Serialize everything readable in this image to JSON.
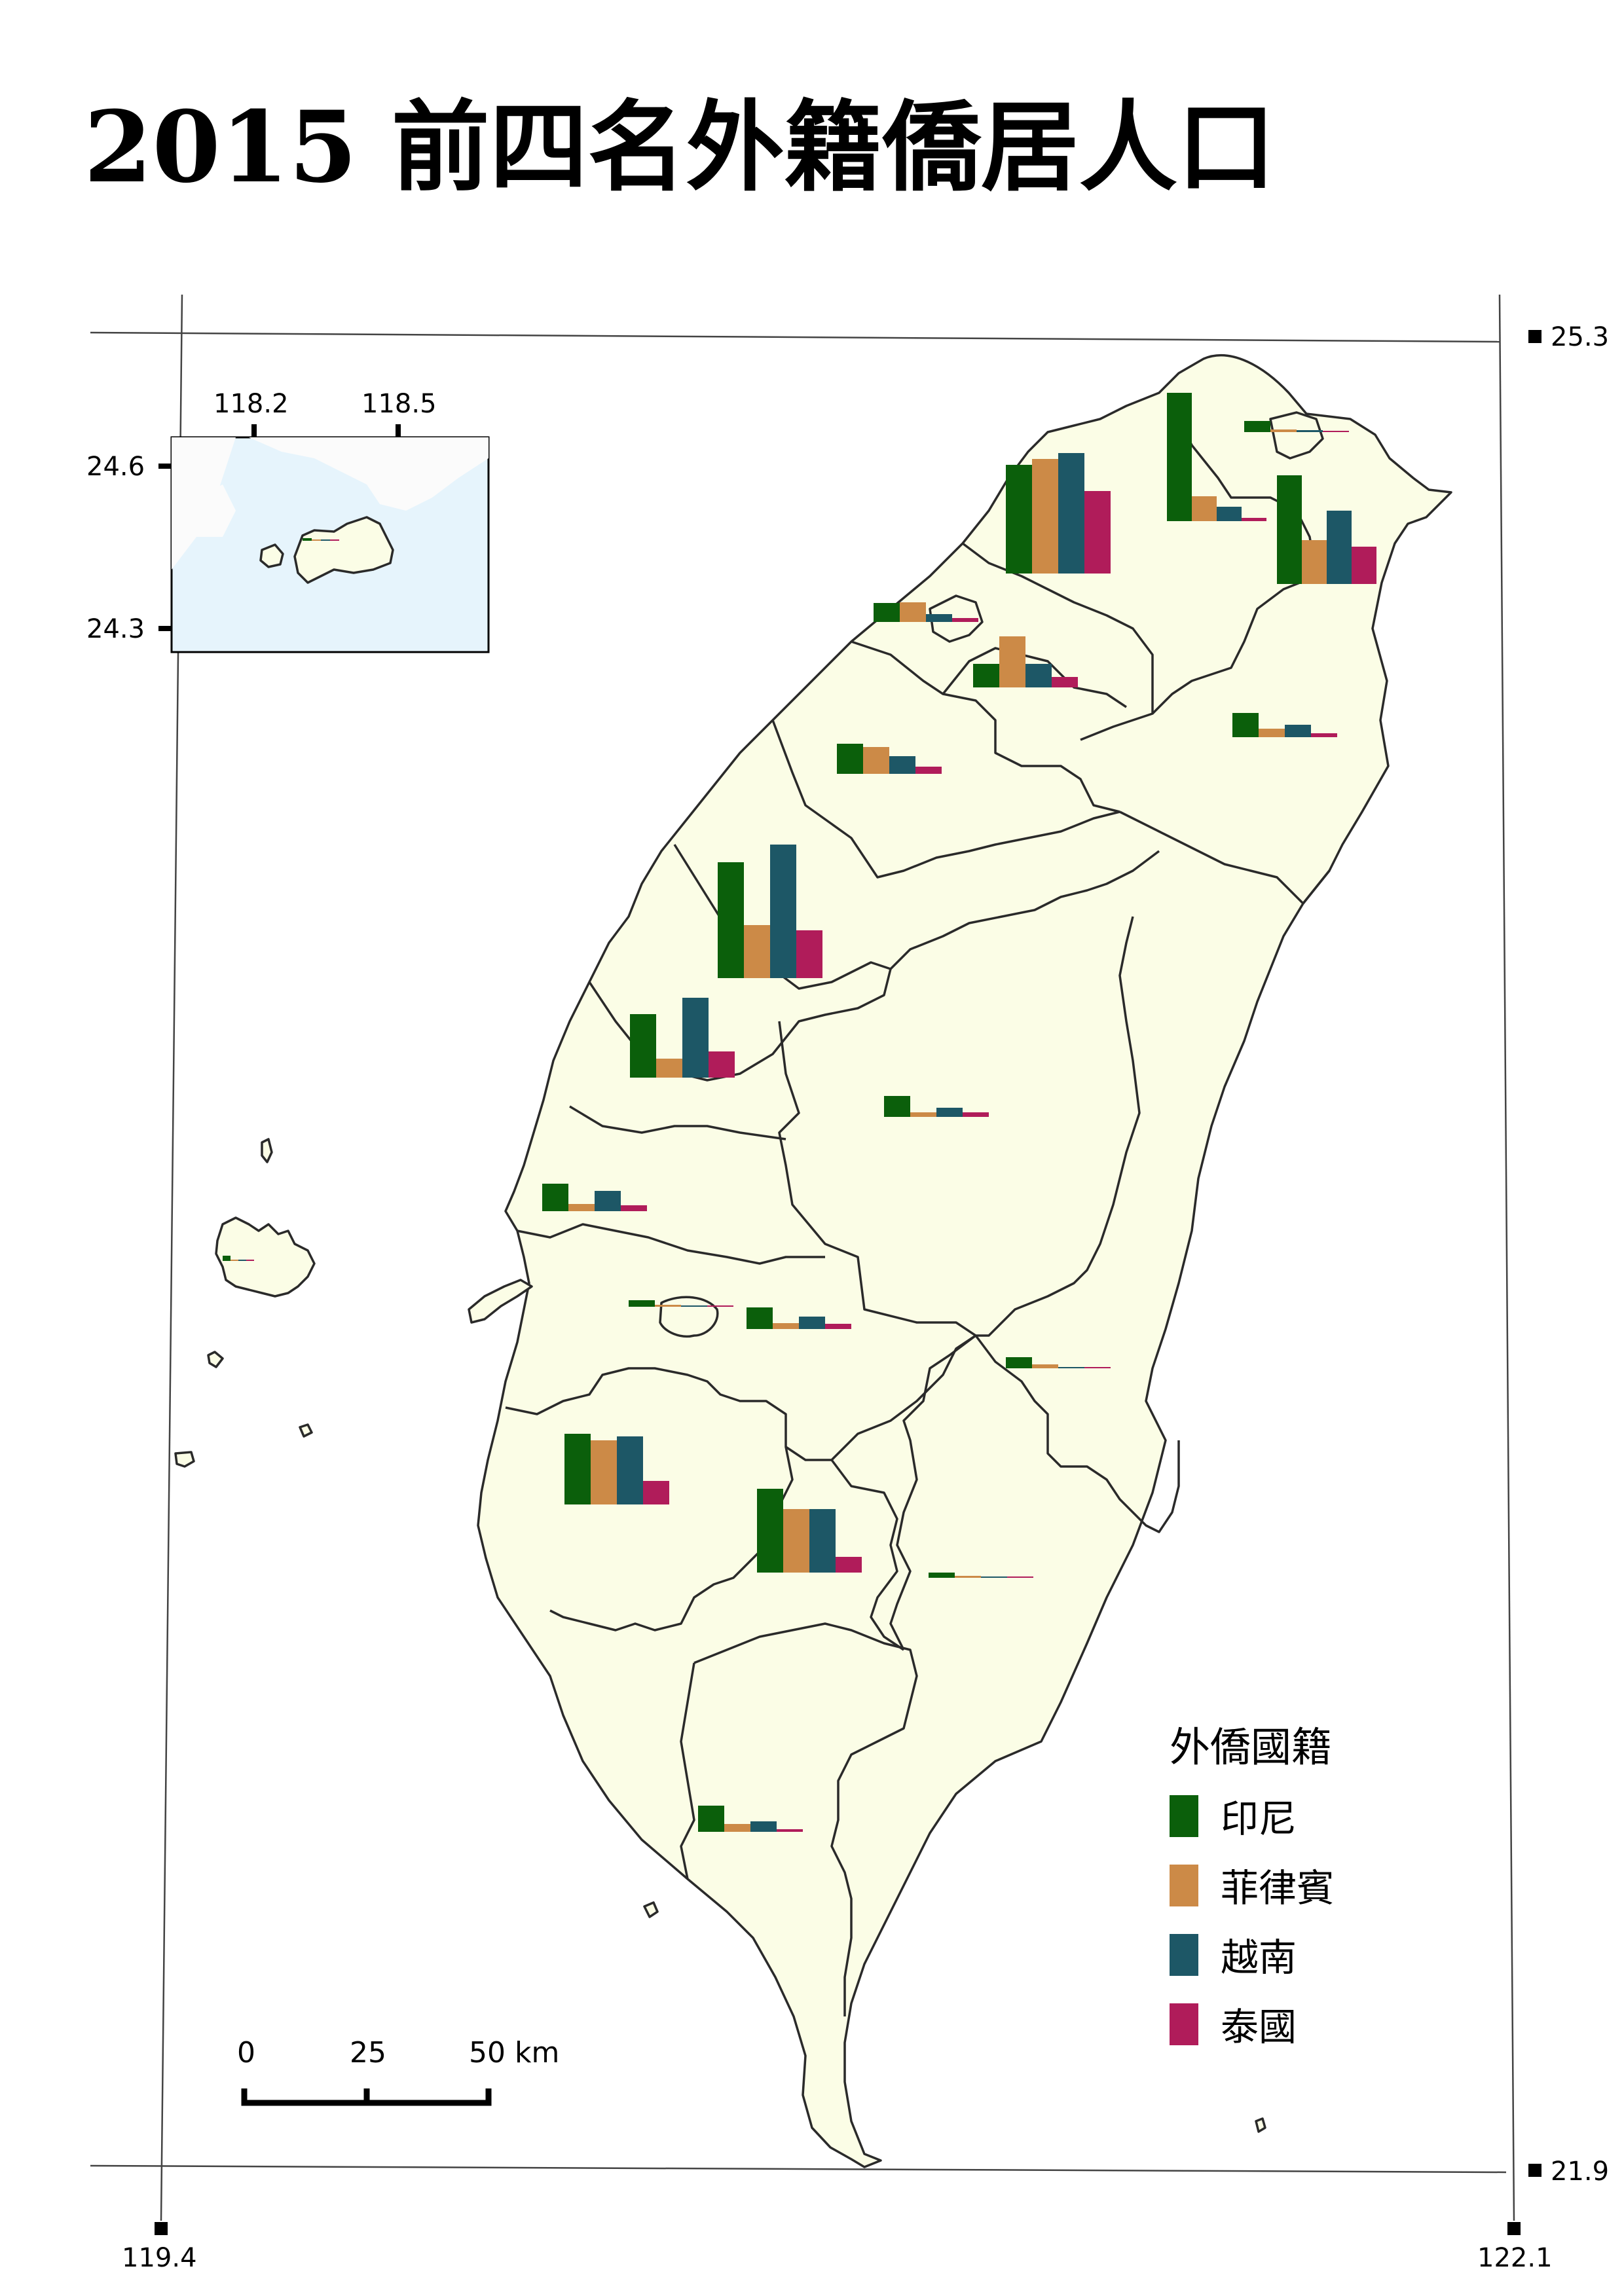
{
  "title": "2015 前四名外籍僑居人口",
  "coords": {
    "lat_top": "25.3",
    "lat_bottom": "21.9",
    "lon_left": "119.4",
    "lon_right": "122.1"
  },
  "inset_coords": {
    "lon_a": "118.2",
    "lon_b": "118.5",
    "lat_a": "24.6",
    "lat_b": "24.3"
  },
  "scale_bar": {
    "labels": [
      "0",
      "25",
      "50 km"
    ]
  },
  "legend": {
    "title": "外僑國籍",
    "items": [
      {
        "label": "印尼",
        "color": "#0b5f0b"
      },
      {
        "label": "菲律賓",
        "color": "#cc8a47"
      },
      {
        "label": "越南",
        "color": "#1d5766"
      },
      {
        "label": "泰國",
        "color": "#b01c5a"
      }
    ]
  },
  "chart_data": {
    "type": "bar",
    "series": [
      {
        "name": "印尼",
        "color": "#0b5f0b"
      },
      {
        "name": "菲律賓",
        "color": "#cc8a47"
      },
      {
        "name": "越南",
        "color": "#1d5766"
      },
      {
        "name": "泰國",
        "color": "#b01c5a"
      }
    ],
    "charts": [
      {
        "id": "new-taipei",
        "values": [
          166,
          175,
          184,
          126
        ]
      },
      {
        "id": "taipei",
        "values": [
          196,
          38,
          22,
          5
        ]
      },
      {
        "id": "keelung",
        "values": [
          17,
          4,
          3,
          1
        ]
      },
      {
        "id": "taoyuan",
        "values": [
          166,
          67,
          112,
          57
        ]
      },
      {
        "id": "hsinchu-city",
        "values": [
          29,
          30,
          12,
          6
        ]
      },
      {
        "id": "hsinchu-county",
        "values": [
          36,
          78,
          36,
          16
        ]
      },
      {
        "id": "yilan",
        "values": [
          37,
          13,
          19,
          6
        ]
      },
      {
        "id": "miaoli",
        "values": [
          46,
          41,
          27,
          11
        ]
      },
      {
        "id": "taichung",
        "values": [
          177,
          81,
          204,
          73
        ]
      },
      {
        "id": "changhua",
        "values": [
          97,
          29,
          122,
          40
        ]
      },
      {
        "id": "nantou",
        "values": [
          32,
          7,
          14,
          7
        ]
      },
      {
        "id": "yunlin",
        "values": [
          42,
          11,
          31,
          9
        ]
      },
      {
        "id": "chiayi-city",
        "values": [
          10,
          3,
          2,
          1
        ]
      },
      {
        "id": "chiayi-county",
        "values": [
          33,
          9,
          19,
          8
        ]
      },
      {
        "id": "hualien",
        "values": [
          17,
          6,
          2,
          2
        ]
      },
      {
        "id": "tainan",
        "values": [
          108,
          98,
          104,
          36
        ]
      },
      {
        "id": "kaohsiung",
        "values": [
          128,
          97,
          97,
          24
        ]
      },
      {
        "id": "taitung",
        "values": [
          8,
          3,
          2,
          1
        ]
      },
      {
        "id": "pingtung",
        "values": [
          40,
          12,
          16,
          4
        ]
      },
      {
        "id": "penghu",
        "values": [
          8,
          2,
          1,
          1
        ]
      },
      {
        "id": "kinmen",
        "values": [
          4,
          1,
          1,
          1
        ]
      }
    ]
  }
}
